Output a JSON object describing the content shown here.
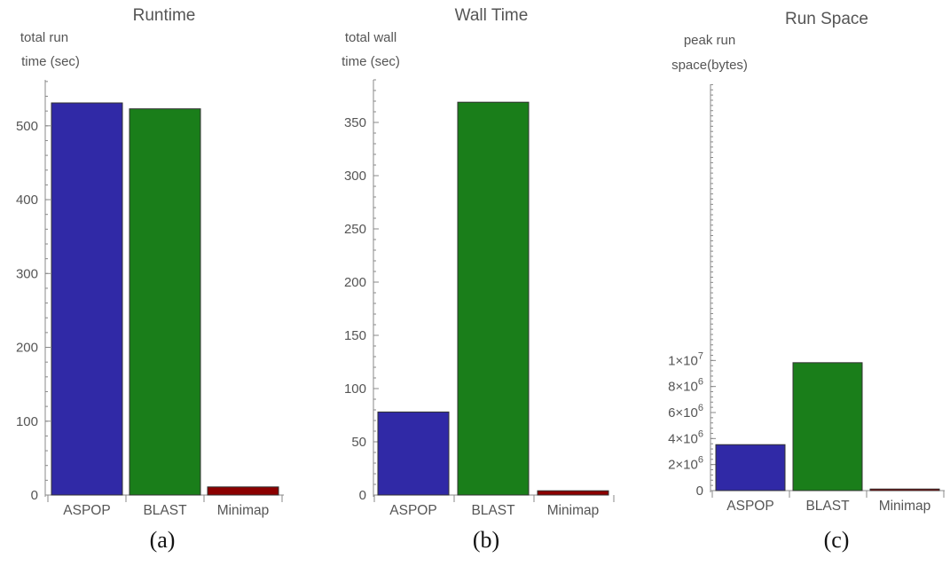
{
  "chart_data": [
    {
      "type": "bar",
      "title": "Runtime",
      "ylabel": [
        "total run",
        "time (sec)"
      ],
      "caption": "(a)",
      "categories": [
        "ASPOP",
        "BLAST",
        "Minimap"
      ],
      "values": [
        531,
        523,
        11
      ],
      "colors": [
        "#3029a6",
        "#1a7e1a",
        "#8b0000"
      ],
      "ylim": [
        0,
        550
      ],
      "major_ticks": [
        0,
        100,
        200,
        300,
        400,
        500
      ],
      "tick_labels": [
        "0",
        "100",
        "200",
        "300",
        "400",
        "500"
      ],
      "minor_step": 20
    },
    {
      "type": "bar",
      "title": "Wall Time",
      "ylabel": [
        "total wall",
        "time (sec)"
      ],
      "caption": "(b)",
      "categories": [
        "ASPOP",
        "BLAST",
        "Minimap"
      ],
      "values": [
        78,
        369,
        4
      ],
      "colors": [
        "#3029a6",
        "#1a7e1a",
        "#8b0000"
      ],
      "ylim": [
        0,
        380
      ],
      "major_ticks": [
        0,
        50,
        100,
        150,
        200,
        250,
        300,
        350
      ],
      "tick_labels": [
        "0",
        "50",
        "100",
        "150",
        "200",
        "250",
        "300",
        "350"
      ],
      "minor_step": 10
    },
    {
      "type": "bar",
      "title": "Run Space",
      "ylabel": [
        "peak run",
        "space(bytes)"
      ],
      "caption": "(c)",
      "categories": [
        "ASPOP",
        "BLAST",
        "Minimap"
      ],
      "values": [
        3530000,
        9830000,
        120000
      ],
      "colors": [
        "#3029a6",
        "#1a7e1a",
        "#8b0000"
      ],
      "ylim": [
        0,
        10500000
      ],
      "major_ticks": [
        0,
        2000000,
        4000000,
        6000000,
        8000000,
        10000000
      ],
      "tick_labels": [
        {
          "mantissa": "0",
          "exp": ""
        },
        {
          "mantissa": "2×10",
          "exp": "6"
        },
        {
          "mantissa": "4×10",
          "exp": "6"
        },
        {
          "mantissa": "6×10",
          "exp": "6"
        },
        {
          "mantissa": "8×10",
          "exp": "6"
        },
        {
          "mantissa": "1×10",
          "exp": "7"
        }
      ],
      "minor_step": 400000
    }
  ]
}
